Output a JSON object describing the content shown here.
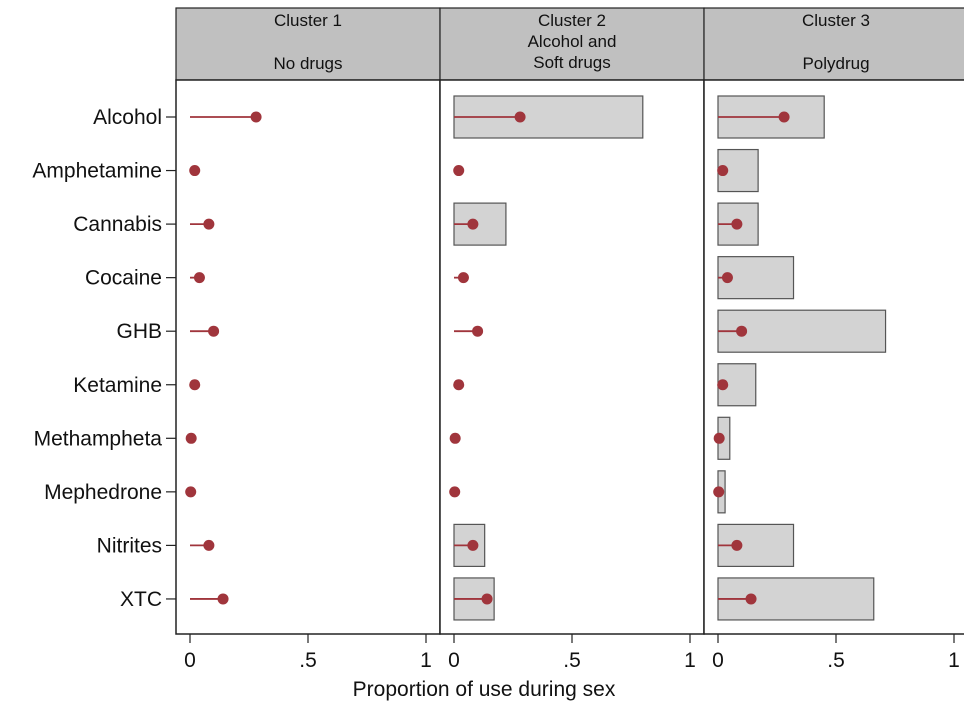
{
  "chart_data": {
    "type": "bar",
    "xlabel": "Proportion of use during sex",
    "xlim": [
      0,
      1
    ],
    "x_ticks": [
      "0",
      ".5",
      "1"
    ],
    "categories": [
      "Alcohol",
      "Amphetamine",
      "Cannabis",
      "Cocaine",
      "GHB",
      "Ketamine",
      "Methampheta",
      "Mephedrone",
      "Nitrites",
      "XTC"
    ],
    "colors": {
      "bar_fill": "#d3d3d3",
      "bar_stroke": "#555555",
      "dot": "#a0353c",
      "header_fill": "#c0c0c0"
    },
    "panels": [
      {
        "title_lines": [
          "Cluster 1",
          "No drugs"
        ],
        "bar_values": [
          0,
          0,
          0,
          0,
          0,
          0,
          0,
          0,
          0,
          0
        ],
        "dot_values": [
          0.28,
          0.02,
          0.08,
          0.04,
          0.1,
          0.02,
          0.005,
          0.003,
          0.08,
          0.14
        ]
      },
      {
        "title_lines": [
          "Cluster 2",
          "Alcohol and",
          "Soft drugs"
        ],
        "bar_values": [
          0.8,
          0,
          0.22,
          0,
          0,
          0,
          0,
          0,
          0.13,
          0.17
        ],
        "dot_values": [
          0.28,
          0.02,
          0.08,
          0.04,
          0.1,
          0.02,
          0.005,
          0.003,
          0.08,
          0.14
        ]
      },
      {
        "title_lines": [
          "Cluster 3",
          "Polydrug"
        ],
        "bar_values": [
          0.45,
          0.17,
          0.17,
          0.32,
          0.71,
          0.16,
          0.05,
          0.03,
          0.32,
          0.66
        ],
        "dot_values": [
          0.28,
          0.02,
          0.08,
          0.04,
          0.1,
          0.02,
          0.005,
          0.003,
          0.08,
          0.14
        ]
      }
    ]
  }
}
